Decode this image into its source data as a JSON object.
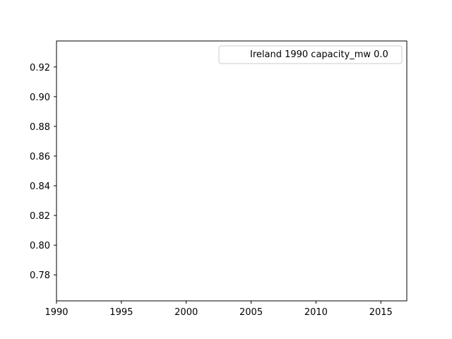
{
  "chart_data": {
    "type": "line",
    "title": "",
    "xlabel": "",
    "ylabel": "",
    "xlim": [
      1990,
      2017
    ],
    "ylim": [
      0.7625,
      0.9375
    ],
    "x_ticks": [
      1990,
      1995,
      2000,
      2005,
      2010,
      2015
    ],
    "y_ticks": [
      0.78,
      0.8,
      0.82,
      0.84,
      0.86,
      0.88,
      0.9,
      0.92
    ],
    "x_tick_labels": [
      "1990",
      "1995",
      "2000",
      "2005",
      "2010",
      "2015"
    ],
    "y_tick_labels": [
      "0.78",
      "0.80",
      "0.82",
      "0.84",
      "0.86",
      "0.88",
      "0.90",
      "0.92"
    ],
    "grid": false,
    "legend": {
      "position": "top-right",
      "entries": [
        "Ireland 1990 capacity_mw 0.0"
      ]
    },
    "series": [
      {
        "name": "Ireland 1990 capacity_mw 0.0",
        "x": [],
        "y": []
      }
    ]
  }
}
